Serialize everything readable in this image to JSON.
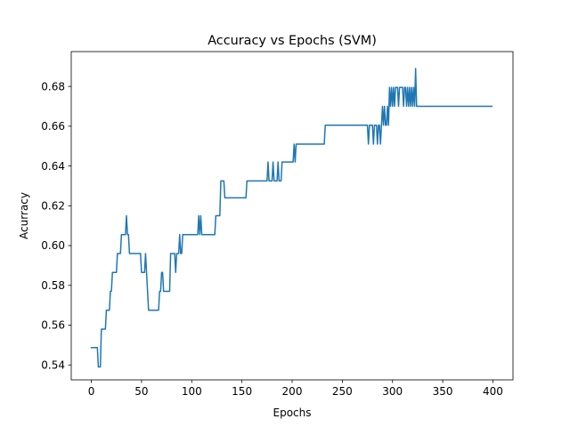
{
  "chart_data": {
    "type": "line",
    "title": "Accuracy vs Epochs (SVM)",
    "xlabel": "Epochs",
    "ylabel": "Acurracy",
    "xlim": [
      -20,
      420
    ],
    "ylim": [
      0.5325,
      0.6975
    ],
    "xticks": [
      0,
      50,
      100,
      150,
      200,
      250,
      300,
      350,
      400
    ],
    "yticks": [
      0.54,
      0.56,
      0.58,
      0.6,
      0.62,
      0.64,
      0.66,
      0.68
    ],
    "ytick_labels": [
      "0.54",
      "0.56",
      "0.58",
      "0.60",
      "0.62",
      "0.64",
      "0.66",
      "0.68"
    ],
    "grid": false,
    "legend": "none",
    "series": [
      {
        "color": "#1f77b4",
        "points": [
          [
            0,
            0.5487
          ],
          [
            6,
            0.5487
          ],
          [
            7,
            0.539
          ],
          [
            9,
            0.539
          ],
          [
            10,
            0.558
          ],
          [
            14,
            0.558
          ],
          [
            15,
            0.5675
          ],
          [
            18,
            0.5675
          ],
          [
            19,
            0.577
          ],
          [
            20,
            0.577
          ],
          [
            21,
            0.5865
          ],
          [
            25,
            0.5865
          ],
          [
            26,
            0.596
          ],
          [
            29,
            0.596
          ],
          [
            30,
            0.6055
          ],
          [
            34,
            0.6055
          ],
          [
            35,
            0.615
          ],
          [
            36,
            0.6055
          ],
          [
            37,
            0.6055
          ],
          [
            38,
            0.596
          ],
          [
            49,
            0.596
          ],
          [
            50,
            0.5865
          ],
          [
            53,
            0.5865
          ],
          [
            54,
            0.596
          ],
          [
            55,
            0.5865
          ],
          [
            57,
            0.5675
          ],
          [
            67,
            0.5675
          ],
          [
            68,
            0.577
          ],
          [
            69,
            0.577
          ],
          [
            70,
            0.5865
          ],
          [
            71,
            0.5865
          ],
          [
            72,
            0.577
          ],
          [
            78,
            0.577
          ],
          [
            79,
            0.596
          ],
          [
            83,
            0.596
          ],
          [
            84,
            0.5865
          ],
          [
            85,
            0.596
          ],
          [
            87,
            0.596
          ],
          [
            88,
            0.6055
          ],
          [
            89,
            0.596
          ],
          [
            90,
            0.596
          ],
          [
            91,
            0.6055
          ],
          [
            106,
            0.6055
          ],
          [
            107,
            0.615
          ],
          [
            108,
            0.6055
          ],
          [
            109,
            0.615
          ],
          [
            110,
            0.6055
          ],
          [
            123,
            0.6055
          ],
          [
            124,
            0.615
          ],
          [
            128,
            0.615
          ],
          [
            129,
            0.6325
          ],
          [
            132,
            0.6325
          ],
          [
            133,
            0.624
          ],
          [
            154,
            0.624
          ],
          [
            155,
            0.6325
          ],
          [
            175,
            0.6325
          ],
          [
            176,
            0.642
          ],
          [
            177,
            0.6325
          ],
          [
            180,
            0.6325
          ],
          [
            181,
            0.642
          ],
          [
            182,
            0.6325
          ],
          [
            185,
            0.6325
          ],
          [
            186,
            0.642
          ],
          [
            187,
            0.6325
          ],
          [
            189,
            0.6325
          ],
          [
            190,
            0.642
          ],
          [
            201,
            0.642
          ],
          [
            202,
            0.651
          ],
          [
            203,
            0.642
          ],
          [
            204,
            0.651
          ],
          [
            232,
            0.651
          ],
          [
            233,
            0.6605
          ],
          [
            275,
            0.6605
          ],
          [
            276,
            0.651
          ],
          [
            277,
            0.6605
          ],
          [
            280,
            0.6605
          ],
          [
            281,
            0.651
          ],
          [
            282,
            0.6605
          ],
          [
            284,
            0.6605
          ],
          [
            285,
            0.651
          ],
          [
            286,
            0.6605
          ],
          [
            287,
            0.6605
          ],
          [
            288,
            0.651
          ],
          [
            289,
            0.6605
          ],
          [
            290,
            0.67
          ],
          [
            291,
            0.6605
          ],
          [
            292,
            0.67
          ],
          [
            293,
            0.6605
          ],
          [
            294,
            0.6605
          ],
          [
            295,
            0.67
          ],
          [
            296,
            0.6605
          ],
          [
            297,
            0.6795
          ],
          [
            298,
            0.67
          ],
          [
            299,
            0.6795
          ],
          [
            300,
            0.67
          ],
          [
            301,
            0.6795
          ],
          [
            302,
            0.67
          ],
          [
            303,
            0.6795
          ],
          [
            305,
            0.6795
          ],
          [
            306,
            0.67
          ],
          [
            307,
            0.6795
          ],
          [
            310,
            0.6795
          ],
          [
            311,
            0.67
          ],
          [
            312,
            0.6795
          ],
          [
            313,
            0.6795
          ],
          [
            314,
            0.67
          ],
          [
            315,
            0.6795
          ],
          [
            316,
            0.67
          ],
          [
            317,
            0.6795
          ],
          [
            318,
            0.67
          ],
          [
            319,
            0.6795
          ],
          [
            320,
            0.67
          ],
          [
            321,
            0.6795
          ],
          [
            322,
            0.67
          ],
          [
            323,
            0.689
          ],
          [
            324,
            0.67
          ],
          [
            399,
            0.67
          ]
        ]
      }
    ]
  }
}
